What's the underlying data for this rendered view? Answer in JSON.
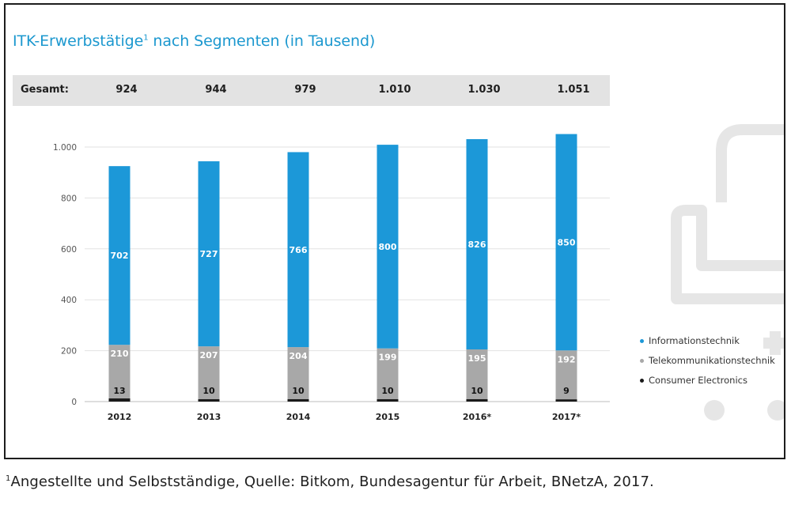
{
  "title": {
    "text": "ITK-Erwerbstätige",
    "superscript": "1",
    "suffix": " nach Segmenten (in Tausend)"
  },
  "totals": {
    "label": "Gesamt:",
    "values": [
      "924",
      "944",
      "979",
      "1.010",
      "1.030",
      "1.051"
    ]
  },
  "footnote": {
    "marker": "1",
    "text": "Angestellte und Selbstständige, Quelle: Bitkom, Bundesagentur für Arbeit, BNetzA, 2017."
  },
  "colors": {
    "title": "#1c98cf",
    "informationstechnik": "#1c98d8",
    "telekommunikationstechnik": "#a8a8a8",
    "consumer_electronics": "#1a1a1a",
    "band": "#e3e3e3",
    "watermark": "#e6e6e6"
  },
  "chart_data": {
    "type": "bar",
    "stacked": true,
    "categories": [
      "2012",
      "2013",
      "2014",
      "2015",
      "2016*",
      "2017*"
    ],
    "series": [
      {
        "name": "Consumer Electronics",
        "values": [
          13,
          10,
          10,
          10,
          10,
          9
        ],
        "labels": [
          "13",
          "10",
          "10",
          "10",
          "10",
          "9"
        ]
      },
      {
        "name": "Telekommunikationstechnik",
        "values": [
          210,
          207,
          204,
          199,
          195,
          192
        ],
        "labels": [
          "210",
          "207",
          "204",
          "199",
          "195",
          "192"
        ]
      },
      {
        "name": "Informationstechnik",
        "values": [
          702,
          727,
          766,
          800,
          826,
          850
        ],
        "labels": [
          "702",
          "727",
          "766",
          "800",
          "826",
          "850"
        ]
      }
    ],
    "ylim": [
      0,
      1000
    ],
    "yticks": [
      0,
      200,
      400,
      600,
      800,
      1000
    ],
    "ytick_labels": [
      "0",
      "200",
      "400",
      "600",
      "800",
      "1.000"
    ],
    "grid": true,
    "legend_position": "right",
    "legend": [
      "Informationstechnik",
      "Telekommunikationstechnik",
      "Consumer Electronics"
    ]
  }
}
